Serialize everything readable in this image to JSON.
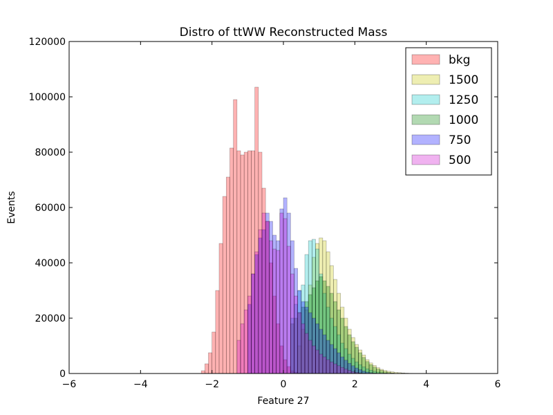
{
  "chart_data": {
    "type": "bar",
    "title": "Distro of ttWW Reconstructed Mass",
    "xlabel": "Feature 27",
    "ylabel": "Events",
    "xlim": [
      -6,
      6
    ],
    "ylim": [
      0,
      120000
    ],
    "xticks": [
      -6,
      -4,
      -2,
      0,
      2,
      4,
      6
    ],
    "xtick_labels": [
      "−6",
      "−4",
      "−2",
      "0",
      "2",
      "4",
      "6"
    ],
    "yticks": [
      0,
      20000,
      40000,
      60000,
      80000,
      100000,
      120000
    ],
    "ytick_labels": [
      "0",
      "20000",
      "40000",
      "60000",
      "80000",
      "100000",
      "120000"
    ],
    "grid": false,
    "legend_position": "top-right",
    "bin_width": 0.1,
    "series": [
      {
        "name": "bkg",
        "color": "#ff0000",
        "x": [
          -2.3,
          -2.2,
          -2.1,
          -2.0,
          -1.9,
          -1.8,
          -1.7,
          -1.6,
          -1.5,
          -1.4,
          -1.3,
          -1.2,
          -1.1,
          -1.0,
          -0.9,
          -0.8,
          -0.7,
          -0.6,
          -0.5,
          -0.4,
          -0.3,
          -0.2,
          -0.1,
          0.0,
          0.1,
          0.2,
          0.3,
          0.4,
          0.5,
          0.6,
          0.7,
          0.8,
          0.9,
          1.0
        ],
        "values": [
          1000,
          3500,
          7500,
          15000,
          30000,
          47000,
          64000,
          71000,
          81500,
          99000,
          80500,
          79000,
          80000,
          80500,
          80500,
          103500,
          80000,
          67000,
          55000,
          40000,
          28000,
          18000,
          10000,
          5000,
          2500,
          1000,
          500,
          200,
          100,
          50,
          20,
          10,
          5,
          0
        ]
      },
      {
        "name": "1500",
        "color": "#c8c800",
        "x": [
          0.4,
          0.5,
          0.6,
          0.7,
          0.8,
          0.9,
          1.0,
          1.1,
          1.2,
          1.3,
          1.4,
          1.5,
          1.6,
          1.7,
          1.8,
          1.9,
          2.0,
          2.1,
          2.2,
          2.3,
          2.4,
          2.5,
          2.6,
          2.7,
          2.8,
          2.9,
          3.0,
          3.1,
          3.2,
          3.3,
          3.4,
          3.5
        ],
        "values": [
          10000,
          16000,
          23000,
          32000,
          42000,
          47000,
          49000,
          48000,
          44000,
          39000,
          34000,
          29000,
          24000,
          20000,
          16000,
          13000,
          10500,
          8500,
          6700,
          5000,
          3800,
          2900,
          2100,
          1500,
          1100,
          800,
          600,
          400,
          300,
          200,
          120,
          60
        ]
      },
      {
        "name": "1250",
        "color": "#00c8c8",
        "x": [
          0.2,
          0.3,
          0.4,
          0.5,
          0.6,
          0.7,
          0.8,
          0.9,
          1.0,
          1.1,
          1.2,
          1.3,
          1.4,
          1.5,
          1.6,
          1.7,
          1.8,
          1.9,
          2.0,
          2.1,
          2.2,
          2.3,
          2.4,
          2.5,
          2.6,
          2.7,
          2.8
        ],
        "values": [
          20000,
          25000,
          30000,
          32000,
          43000,
          48000,
          48500,
          45000,
          36000,
          29000,
          24000,
          20000,
          17000,
          14000,
          11000,
          9000,
          7000,
          5500,
          4200,
          3200,
          2400,
          1700,
          1200,
          800,
          500,
          300,
          150
        ]
      },
      {
        "name": "1000",
        "color": "#008000",
        "x": [
          0.2,
          0.3,
          0.4,
          0.5,
          0.6,
          0.7,
          0.8,
          0.9,
          1.0,
          1.1,
          1.2,
          1.3,
          1.4,
          1.5,
          1.6,
          1.7,
          1.8,
          1.9,
          2.0,
          2.1,
          2.2,
          2.3,
          2.4,
          2.5,
          2.6,
          2.7,
          2.8,
          2.9,
          3.0
        ],
        "values": [
          18000,
          20000,
          22000,
          24000,
          26000,
          28500,
          31000,
          33500,
          35000,
          33500,
          31500,
          29000,
          26000,
          23000,
          20000,
          17000,
          14000,
          11500,
          9500,
          7500,
          5800,
          4300,
          3200,
          2300,
          1600,
          1100,
          700,
          400,
          200
        ]
      },
      {
        "name": "750",
        "color": "#0000ff",
        "x": [
          -1.0,
          -0.9,
          -0.8,
          -0.7,
          -0.6,
          -0.5,
          -0.4,
          -0.3,
          -0.2,
          -0.1,
          0.0,
          0.1,
          0.2,
          0.3,
          0.4,
          0.5,
          0.6,
          0.7,
          0.8,
          0.9,
          1.0,
          1.1,
          1.2,
          1.3,
          1.4,
          1.5,
          1.6,
          1.7,
          1.8,
          1.9,
          2.0,
          2.1,
          2.2,
          2.3,
          2.4,
          2.5
        ],
        "values": [
          25000,
          36000,
          43000,
          49000,
          52000,
          58000,
          55000,
          50000,
          48000,
          59500,
          63500,
          58000,
          48000,
          38000,
          30000,
          26000,
          24000,
          22000,
          20000,
          18000,
          16000,
          14000,
          12000,
          10500,
          9000,
          7500,
          6000,
          4800,
          3700,
          2800,
          2000,
          1400,
          900,
          500,
          300,
          150
        ]
      },
      {
        "name": "500",
        "color": "#cc00cc",
        "x": [
          -1.3,
          -1.2,
          -1.1,
          -1.0,
          -0.9,
          -0.8,
          -0.7,
          -0.6,
          -0.5,
          -0.4,
          -0.3,
          -0.2,
          -0.1,
          0.0,
          0.1,
          0.2,
          0.3,
          0.4,
          0.5,
          0.6,
          0.7,
          0.8,
          0.9,
          1.0,
          1.1,
          1.2,
          1.3,
          1.4,
          1.5,
          1.6,
          1.7,
          1.8,
          1.9,
          2.0,
          2.1,
          2.2
        ],
        "values": [
          12000,
          18000,
          23000,
          28000,
          36000,
          44000,
          52000,
          58000,
          55000,
          48000,
          45000,
          44500,
          58000,
          56000,
          46000,
          36000,
          28000,
          22000,
          18000,
          14500,
          12000,
          10000,
          8500,
          7000,
          6000,
          5000,
          4200,
          3500,
          2800,
          2200,
          1600,
          1100,
          700,
          400,
          200,
          100
        ]
      }
    ]
  }
}
